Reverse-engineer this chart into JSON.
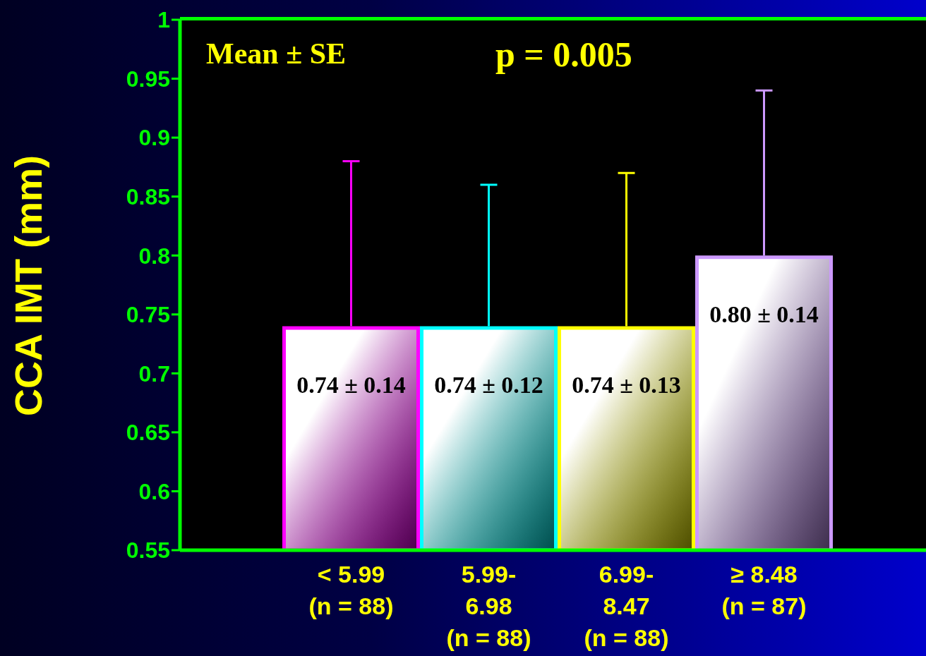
{
  "chart_data": {
    "type": "bar",
    "ylabel": "CCA IMT (mm)",
    "annotations": [
      "Mean ± SE",
      "p = 0.005"
    ],
    "categories": [
      "< 5.99\n\n(n = 88)",
      "5.99-\n6.98\n(n = 88)",
      "6.99-\n8.47\n(n = 88)",
      "≥ 8.48\n\n(n = 87)"
    ],
    "values": [
      0.74,
      0.74,
      0.74,
      0.8
    ],
    "errors": [
      [
        0.74,
        0.88
      ],
      [
        0.74,
        0.86
      ],
      [
        0.74,
        0.87
      ],
      [
        0.8,
        0.94
      ]
    ],
    "value_labels": [
      "0.74 ± 0.14",
      "0.74 ± 0.12",
      "0.74 ± 0.13",
      "0.80 ± 0.14"
    ],
    "colors": [
      "#ff00ff",
      "#00ffff",
      "#ffff00",
      "#cc99ff"
    ],
    "ylim": [
      0.55,
      1
    ],
    "yticks": [
      0.55,
      0.6,
      0.65,
      0.7,
      0.75,
      0.8,
      0.85,
      0.9,
      0.95,
      1
    ],
    "grid": false
  }
}
